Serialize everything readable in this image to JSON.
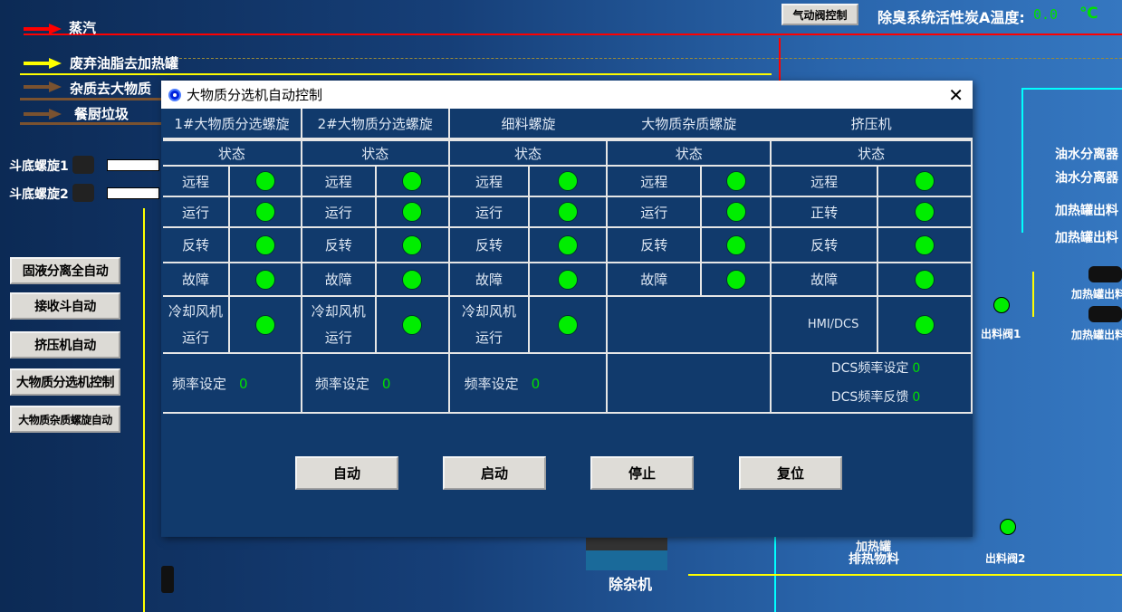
{
  "legend": {
    "steam": "蒸汽",
    "grease": "废弃油脂去加热罐",
    "impurity": "杂质去大物质",
    "kitchen": "餐厨垃圾"
  },
  "colors": {
    "steam": "#ff0000",
    "grease": "#ffff00",
    "impurity": "#7a5230",
    "lamp": "#00ee00",
    "value": "#00e000"
  },
  "top": {
    "valve_button": "气动阀控制",
    "temp_label": "除臭系统活性炭A温度:",
    "temp_value": "0.0",
    "temp_unit": "℃"
  },
  "equipment": {
    "screw1": "斗底螺旋1",
    "screw2": "斗底螺旋2",
    "remover": "除杂机",
    "outlet1": "出料阀1",
    "outlet2": "出料阀2",
    "heat_tank": "加热罐",
    "discharge": "排热物料",
    "oil1": "油水分离器",
    "oil2": "油水分离器",
    "heat_out1": "加热罐出料",
    "heat_out2": "加热罐出料",
    "heat_out3": "加热罐出料",
    "heat_out4": "加热罐出料"
  },
  "left_buttons": [
    "固液分离全自动",
    "接收斗自动",
    "挤压机自动",
    "大物质分选机控制",
    "大物质杂质螺旋自动"
  ],
  "dialog": {
    "title": "大物质分选机自动控制",
    "columns": [
      {
        "name": "1#大物质分选螺旋",
        "status": "状态",
        "rows": [
          "远程",
          "运行",
          "反转",
          "故障"
        ],
        "cool1": "冷却风机",
        "cool2": "运行",
        "freq_label": "频率设定",
        "freq_value": "0"
      },
      {
        "name": "2#大物质分选螺旋",
        "status": "状态",
        "rows": [
          "远程",
          "运行",
          "反转",
          "故障"
        ],
        "cool1": "冷却风机",
        "cool2": "运行",
        "freq_label": "频率设定",
        "freq_value": "0"
      },
      {
        "name": "细料螺旋",
        "status": "状态",
        "rows": [
          "远程",
          "运行",
          "反转",
          "故障"
        ],
        "cool1": "冷却风机",
        "cool2": "运行",
        "freq_label": "频率设定",
        "freq_value": "0"
      },
      {
        "name": "大物质杂质螺旋",
        "status": "状态",
        "rows": [
          "远程",
          "运行",
          "反转",
          "故障"
        ]
      },
      {
        "name": "挤压机",
        "status": "状态",
        "rows": [
          "远程",
          "正转",
          "反转",
          "故障"
        ],
        "hmi": "HMI/DCS",
        "dcs_set_label": "DCS频率设定",
        "dcs_set_value": "0",
        "dcs_fb_label": "DCS频率反馈",
        "dcs_fb_value": "0"
      }
    ],
    "buttons": {
      "auto": "自动",
      "start": "启动",
      "stop": "停止",
      "reset": "复位"
    }
  }
}
